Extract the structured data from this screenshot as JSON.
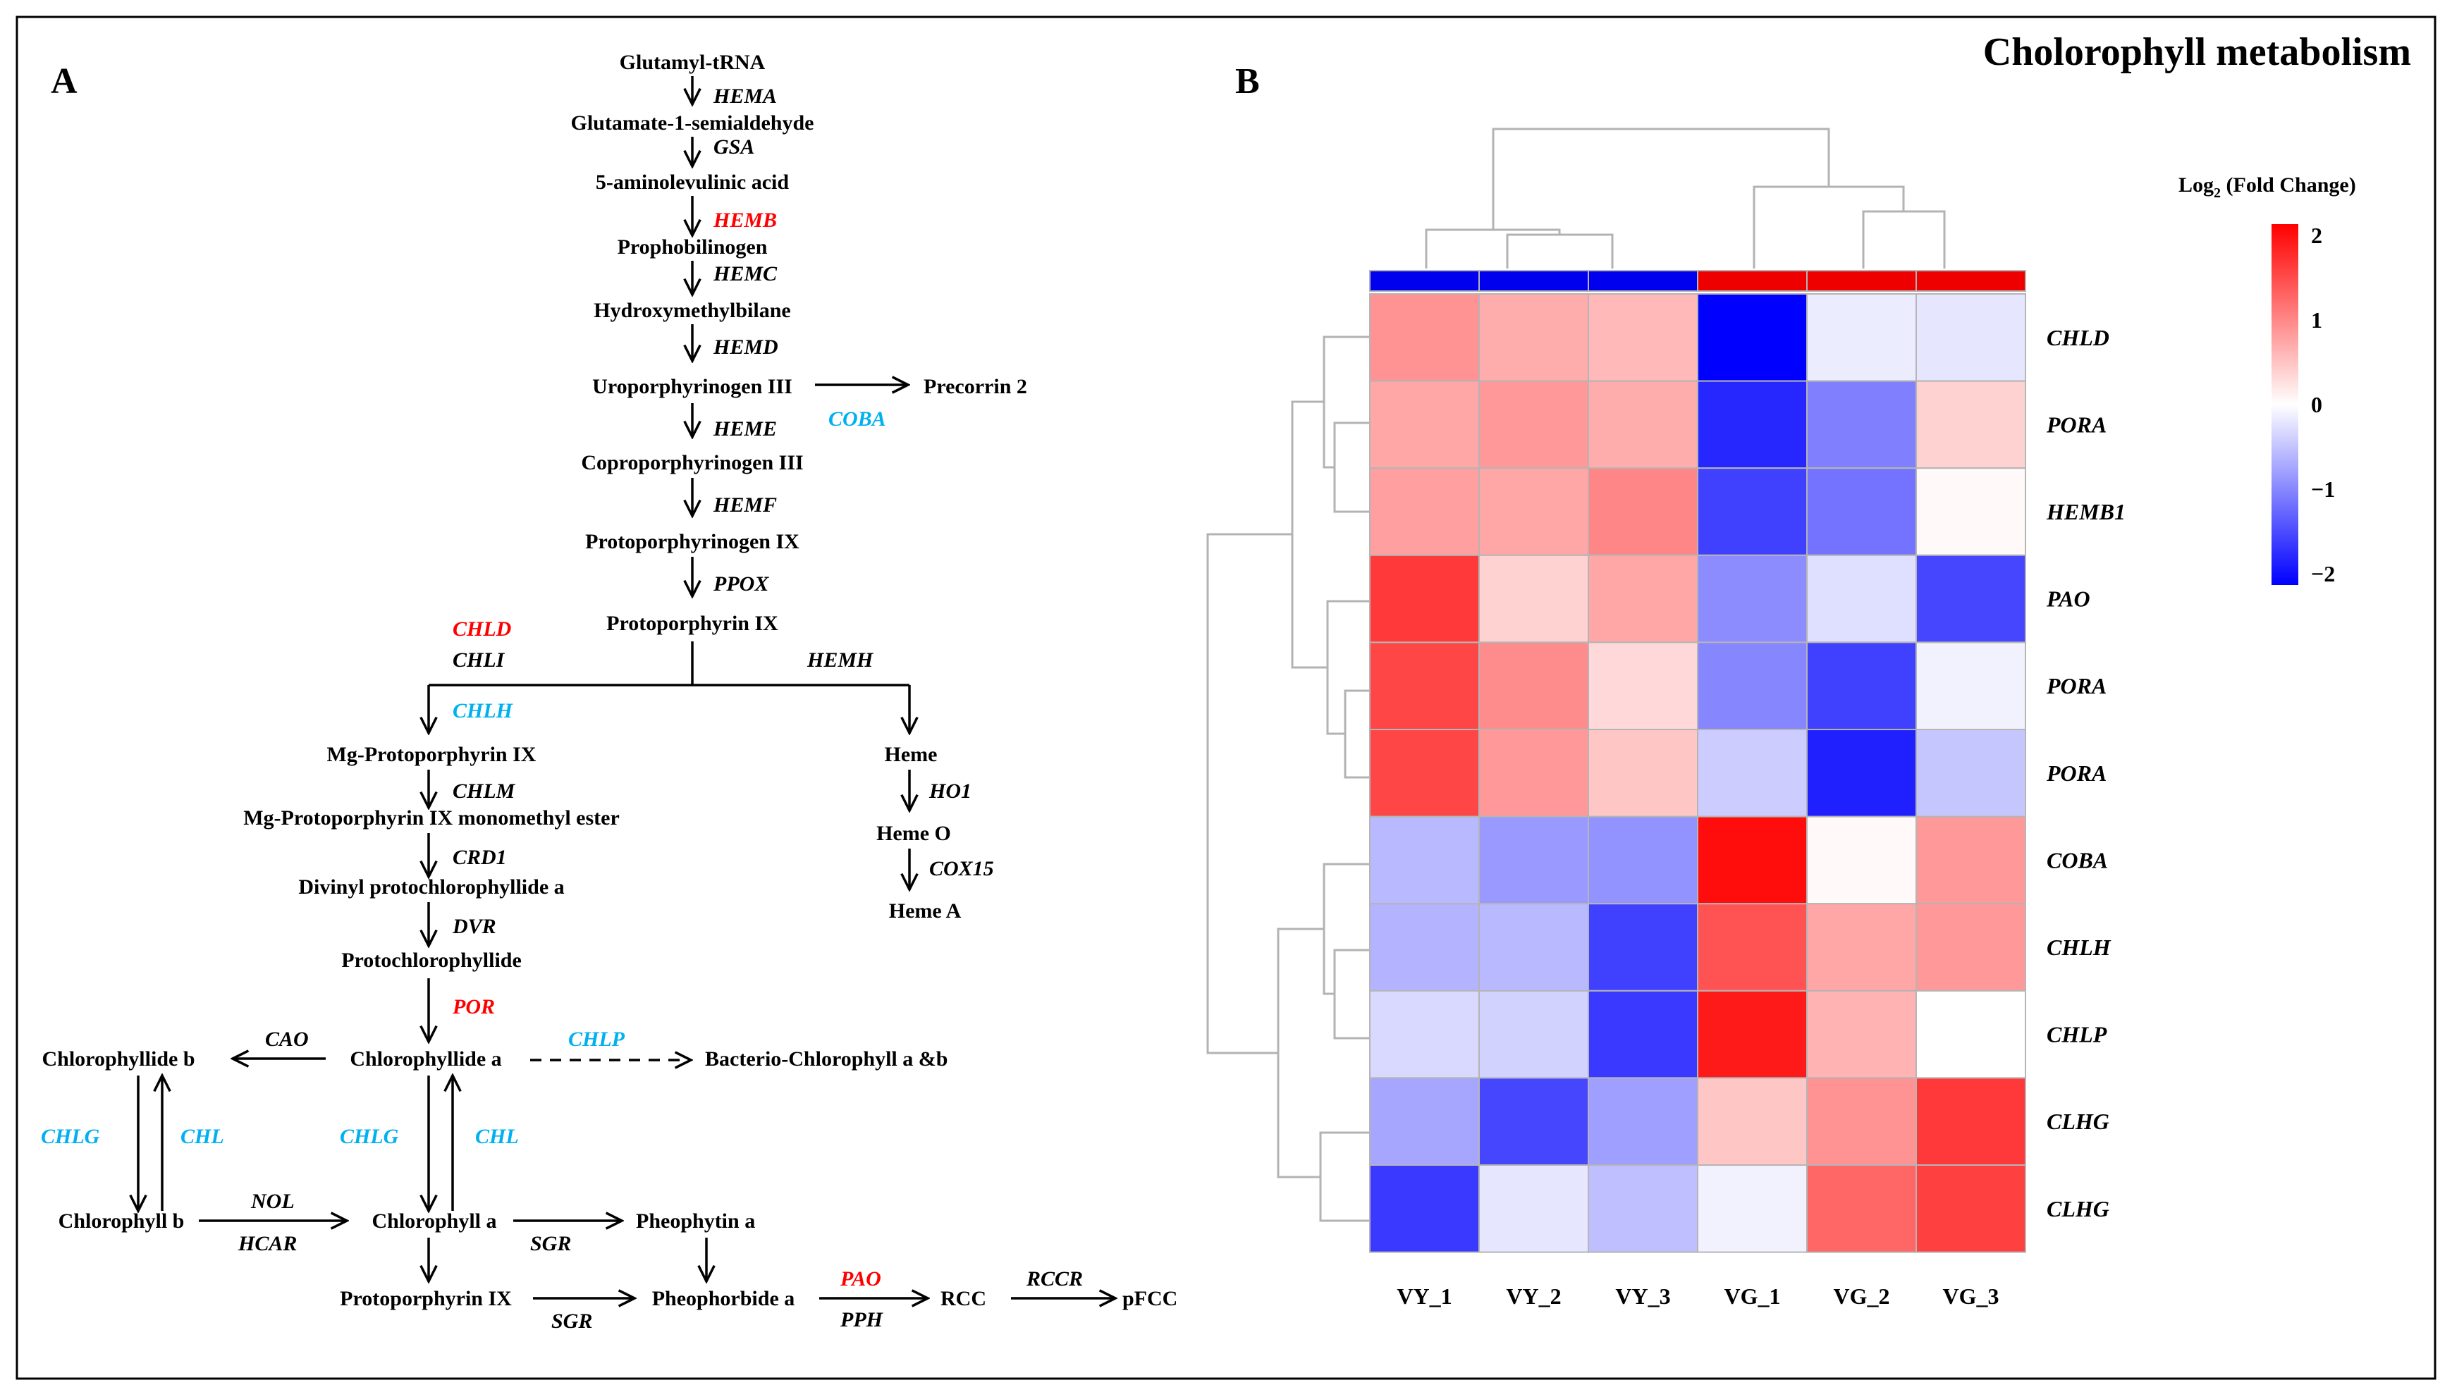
{
  "panel_a": {
    "label": "A",
    "metabolites": {
      "glutamyl_trna": "Glutamyl-tRNA",
      "glutamate_semialdehyde": "Glutamate-1-semialdehyde",
      "ala": "5-aminolevulinic acid",
      "prophobilinogen": "Prophobilinogen",
      "hydroxymethylbilane": "Hydroxymethylbilane",
      "uroporphyrinogen": "Uroporphyrinogen III",
      "precorrin": "Precorrin 2",
      "coproporphyrinogen": "Coproporphyrinogen III",
      "protoporphyrinogen": "Protoporphyrinogen IX",
      "protoporphyrin": "Protoporphyrin IX",
      "mg_protoporphyrin": "Mg-Protoporphyrin IX",
      "mg_proto_ester": "Mg-Protoporphyrin IX monomethyl ester",
      "divinyl": "Divinyl protochlorophyllide a",
      "protochlorophyllide": "Protochlorophyllide",
      "heme": "Heme",
      "heme_o": "Heme O",
      "heme_a": "Heme A",
      "chlorophyllide_b": "Chlorophyllide b",
      "chlorophyllide_a": "Chlorophyllide a",
      "bacterio": "Bacterio-Chlorophyll a &b",
      "chlorophyll_b": "Chlorophyll b",
      "chlorophyll_a": "Chlorophyll a",
      "pheophytin": "Pheophytin a",
      "protoporphyrin2": "Protoporphyrin IX",
      "pheophorbide": "Pheophorbide a",
      "rcc": "RCC",
      "pfcc": "pFCC"
    },
    "genes": {
      "hema": "HEMA",
      "gsa": "GSA",
      "hemb": "HEMB",
      "hemc": "HEMC",
      "hemd": "HEMD",
      "heme": "HEME",
      "coba": "COBA",
      "hemf": "HEMF",
      "ppox": "PPOX",
      "chld": "CHLD",
      "chli": "CHLI",
      "hemh": "HEMH",
      "chlh": "CHLH",
      "chlm": "CHLM",
      "crd1": "CRD1",
      "dvr": "DVR",
      "por": "POR",
      "ho1": "HO1",
      "cox15": "COX15",
      "cao": "CAO",
      "chlp": "CHLP",
      "chlg_left": "CHLG",
      "chl_left": "CHL",
      "chlg_mid": "CHLG",
      "chl_mid": "CHL",
      "nol": "NOL",
      "hcar": "HCAR",
      "sgr_a": "SGR",
      "sgr_b": "SGR",
      "pao": "PAO",
      "pph": "PPH",
      "rccr": "RCCR"
    },
    "colors": {
      "up": "#ff0000",
      "down": "#00b0f0",
      "neutral": "#000000"
    }
  },
  "panel_b": {
    "label": "B",
    "title": "Cholorophyll metabolism",
    "legend_title_prefix": "Log",
    "legend_title_sub": "2",
    "legend_title_suffix": " (Fold Change)",
    "legend_ticks": [
      "2",
      "1",
      "0",
      "−1",
      "−2"
    ],
    "group_colors": {
      "VY": "#0000ee",
      "VG": "#ee0000"
    }
  },
  "chart_data": {
    "type": "heatmap",
    "title": "Cholorophyll metabolism",
    "columns": [
      "VY_1",
      "VY_2",
      "VY_3",
      "VG_1",
      "VG_2",
      "VG_3"
    ],
    "column_groups": [
      "VY",
      "VY",
      "VY",
      "VG",
      "VG",
      "VG"
    ],
    "rows": [
      "CHLD",
      "PORA",
      "HEMB1",
      "PAO",
      "PORA",
      "PORA",
      "COBA",
      "CHLH",
      "CHLP",
      "CLHG",
      "CLHG"
    ],
    "values": [
      [
        0.85,
        0.65,
        0.55,
        -2.0,
        -0.15,
        -0.2
      ],
      [
        0.7,
        0.8,
        0.65,
        -1.7,
        -1.0,
        0.35
      ],
      [
        0.75,
        0.7,
        0.95,
        -1.5,
        -1.1,
        0.05
      ],
      [
        1.55,
        0.35,
        0.7,
        -0.9,
        -0.25,
        -1.45
      ],
      [
        1.45,
        0.9,
        0.3,
        -0.95,
        -1.5,
        -0.1
      ],
      [
        1.45,
        0.8,
        0.45,
        -0.4,
        -1.75,
        -0.45
      ],
      [
        -0.55,
        -0.8,
        -0.85,
        1.9,
        0.05,
        0.8
      ],
      [
        -0.6,
        -0.55,
        -1.5,
        1.35,
        0.7,
        0.8
      ],
      [
        -0.3,
        -0.35,
        -1.55,
        1.8,
        0.6,
        0.0
      ],
      [
        -0.7,
        -1.45,
        -0.75,
        0.45,
        0.85,
        1.55
      ],
      [
        -1.55,
        -0.2,
        -0.5,
        -0.1,
        1.2,
        1.5
      ]
    ],
    "color_scale": {
      "min": -2,
      "mid": 0,
      "max": 2,
      "low": "#0000ff",
      "midColor": "#ffffff",
      "high": "#ff0000"
    },
    "legend_title": "Log2 (Fold Change)",
    "legend_ticks": [
      2,
      1,
      0,
      -1,
      -2
    ]
  }
}
